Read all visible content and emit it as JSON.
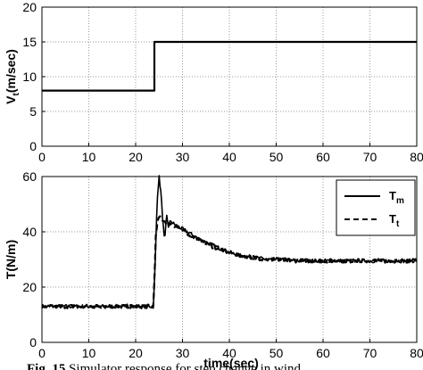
{
  "chart_data": [
    {
      "type": "line",
      "xlabel": "",
      "ylabel": "V",
      "ylabel_subscript": "t",
      "ylabel_unit": "(m/sec)",
      "xlim": [
        0,
        80
      ],
      "ylim": [
        0,
        20
      ],
      "x_ticks": [
        "0",
        "10",
        "20",
        "30",
        "40",
        "50",
        "60",
        "70",
        "80"
      ],
      "y_ticks": [
        "0",
        "5",
        "10",
        "15",
        "20"
      ],
      "grid": true,
      "series": [
        {
          "x": [
            0,
            24,
            24,
            80
          ],
          "y": [
            8,
            8,
            15,
            15
          ]
        }
      ]
    },
    {
      "type": "line",
      "xlabel": "time(sec)",
      "ylabel": "T(N/m)",
      "xlim": [
        0,
        80
      ],
      "ylim": [
        0,
        60
      ],
      "x_ticks": [
        "0",
        "10",
        "20",
        "30",
        "40",
        "50",
        "60",
        "70",
        "80"
      ],
      "y_ticks": [
        "0",
        "20",
        "40",
        "60"
      ],
      "grid": true,
      "legend_position": "top-right",
      "series": [
        {
          "name": "T",
          "name_subscript": "m",
          "line_style": "solid",
          "x": [
            0,
            23.8,
            24.2,
            24.6,
            25,
            25.4,
            25.8,
            26.2,
            26.6,
            27,
            27.5,
            28,
            29,
            30,
            32,
            34,
            36,
            38,
            40,
            42,
            44,
            46,
            48,
            50,
            55,
            60,
            65,
            70,
            75,
            80
          ],
          "y": [
            13,
            13,
            30,
            52,
            60,
            54,
            44,
            36,
            46,
            42,
            44,
            43,
            42,
            41,
            39,
            37,
            35.5,
            34,
            32.5,
            31.5,
            31,
            30.5,
            30,
            30,
            29.5,
            29.5,
            29.5,
            29.5,
            29.5,
            29.5
          ]
        },
        {
          "name": "T",
          "name_subscript": "t",
          "line_style": "dashed",
          "x": [
            0,
            23.8,
            24.3,
            24.8,
            25.4,
            26,
            26.6,
            27.2,
            28,
            29,
            30,
            32,
            34,
            36,
            38,
            40,
            42,
            44,
            46,
            48,
            50,
            55,
            60,
            65,
            70,
            75,
            80
          ],
          "y": [
            13,
            13,
            38,
            45,
            45,
            44,
            43.5,
            43,
            42.5,
            41.5,
            40.5,
            38.5,
            36.5,
            35,
            33.5,
            32.5,
            31.5,
            31,
            30.5,
            30,
            30,
            29.5,
            29.5,
            29.5,
            29.5,
            29.5,
            29.5
          ]
        }
      ]
    }
  ],
  "caption": {
    "label": "Fig. 15",
    "text": " Simulator response for step change in wind"
  }
}
